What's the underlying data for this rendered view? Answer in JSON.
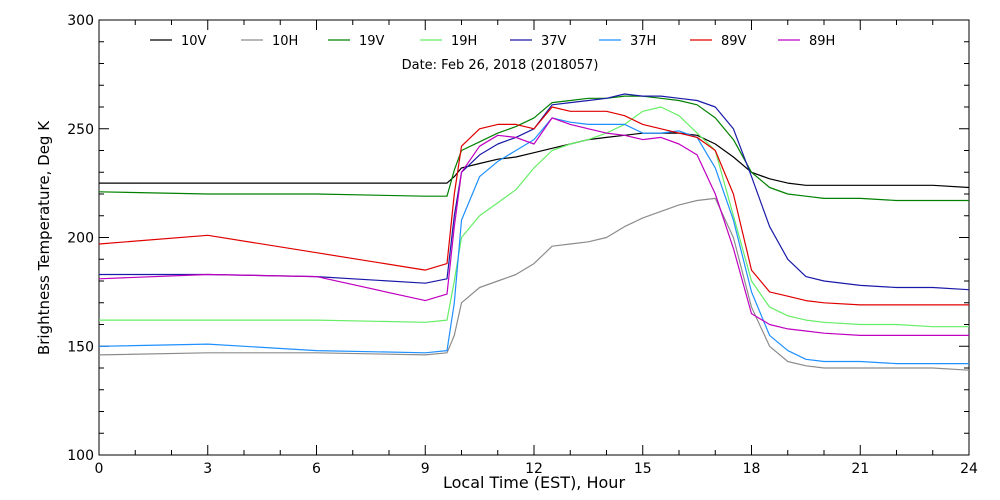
{
  "chart_data": {
    "type": "line",
    "title": "Date: Feb 26, 2018 (2018057)",
    "xlabel": "Local Time (EST), Hour",
    "ylabel": "Brightness Temperature, Deg K",
    "xlim": [
      0,
      24
    ],
    "ylim": [
      100,
      300
    ],
    "xticks": [
      0,
      3,
      6,
      9,
      12,
      15,
      18,
      21,
      24
    ],
    "yticks": [
      100,
      150,
      200,
      250,
      300
    ],
    "grid": false,
    "legend_position": "top",
    "x": [
      0,
      3,
      6,
      9,
      9.6,
      9.8,
      10,
      10.5,
      11,
      11.5,
      12,
      12.5,
      13,
      13.5,
      14,
      14.5,
      15,
      15.5,
      16,
      16.5,
      17,
      17.5,
      18,
      18.5,
      19,
      19.5,
      20,
      21,
      22,
      23,
      24
    ],
    "series": [
      {
        "name": "10V",
        "color": "#000000",
        "values": [
          225,
          225,
          225,
          225,
          225,
          228,
          232,
          234,
          236,
          237,
          239,
          241,
          243,
          245,
          246,
          247,
          248,
          248,
          248,
          247,
          243,
          237,
          230,
          227,
          225,
          224,
          224,
          224,
          224,
          224,
          223
        ]
      },
      {
        "name": "10H",
        "color": "#8c8c8c",
        "values": [
          146,
          147,
          147,
          146,
          147,
          155,
          170,
          177,
          180,
          183,
          188,
          196,
          197,
          198,
          200,
          205,
          209,
          212,
          215,
          217,
          218,
          200,
          168,
          150,
          143,
          141,
          140,
          140,
          140,
          140,
          139
        ]
      },
      {
        "name": "19V",
        "color": "#008000",
        "values": [
          221,
          220,
          220,
          219,
          219,
          231,
          240,
          244,
          248,
          251,
          255,
          262,
          263,
          264,
          264,
          265,
          265,
          264,
          263,
          261,
          255,
          245,
          230,
          223,
          220,
          219,
          218,
          218,
          217,
          217,
          217
        ]
      },
      {
        "name": "19H",
        "color": "#66ee66",
        "values": [
          162,
          162,
          162,
          161,
          162,
          180,
          200,
          210,
          216,
          222,
          232,
          240,
          243,
          245,
          248,
          252,
          258,
          260,
          256,
          248,
          240,
          210,
          180,
          168,
          164,
          162,
          161,
          160,
          160,
          159,
          159
        ]
      },
      {
        "name": "37V",
        "color": "#1a1aa8",
        "values": [
          183,
          183,
          182,
          179,
          181,
          210,
          230,
          238,
          243,
          246,
          250,
          261,
          262,
          263,
          264,
          266,
          265,
          265,
          264,
          263,
          260,
          250,
          228,
          205,
          190,
          182,
          180,
          178,
          177,
          177,
          176
        ]
      },
      {
        "name": "37H",
        "color": "#1e90ff",
        "values": [
          150,
          151,
          148,
          147,
          148,
          170,
          208,
          228,
          235,
          240,
          245,
          255,
          253,
          252,
          252,
          252,
          248,
          248,
          249,
          246,
          232,
          208,
          175,
          155,
          148,
          144,
          143,
          143,
          142,
          142,
          142
        ]
      },
      {
        "name": "89V",
        "color": "#e00000",
        "values": [
          197,
          201,
          193,
          185,
          188,
          220,
          242,
          250,
          252,
          252,
          250,
          260,
          258,
          258,
          258,
          256,
          252,
          250,
          248,
          246,
          240,
          220,
          185,
          175,
          173,
          171,
          170,
          169,
          169,
          169,
          169
        ]
      },
      {
        "name": "89H",
        "color": "#c000c0",
        "values": [
          181,
          183,
          182,
          171,
          174,
          205,
          230,
          242,
          247,
          246,
          243,
          255,
          252,
          250,
          248,
          247,
          245,
          246,
          243,
          238,
          220,
          195,
          165,
          160,
          158,
          157,
          156,
          155,
          155,
          155,
          155
        ]
      }
    ]
  }
}
